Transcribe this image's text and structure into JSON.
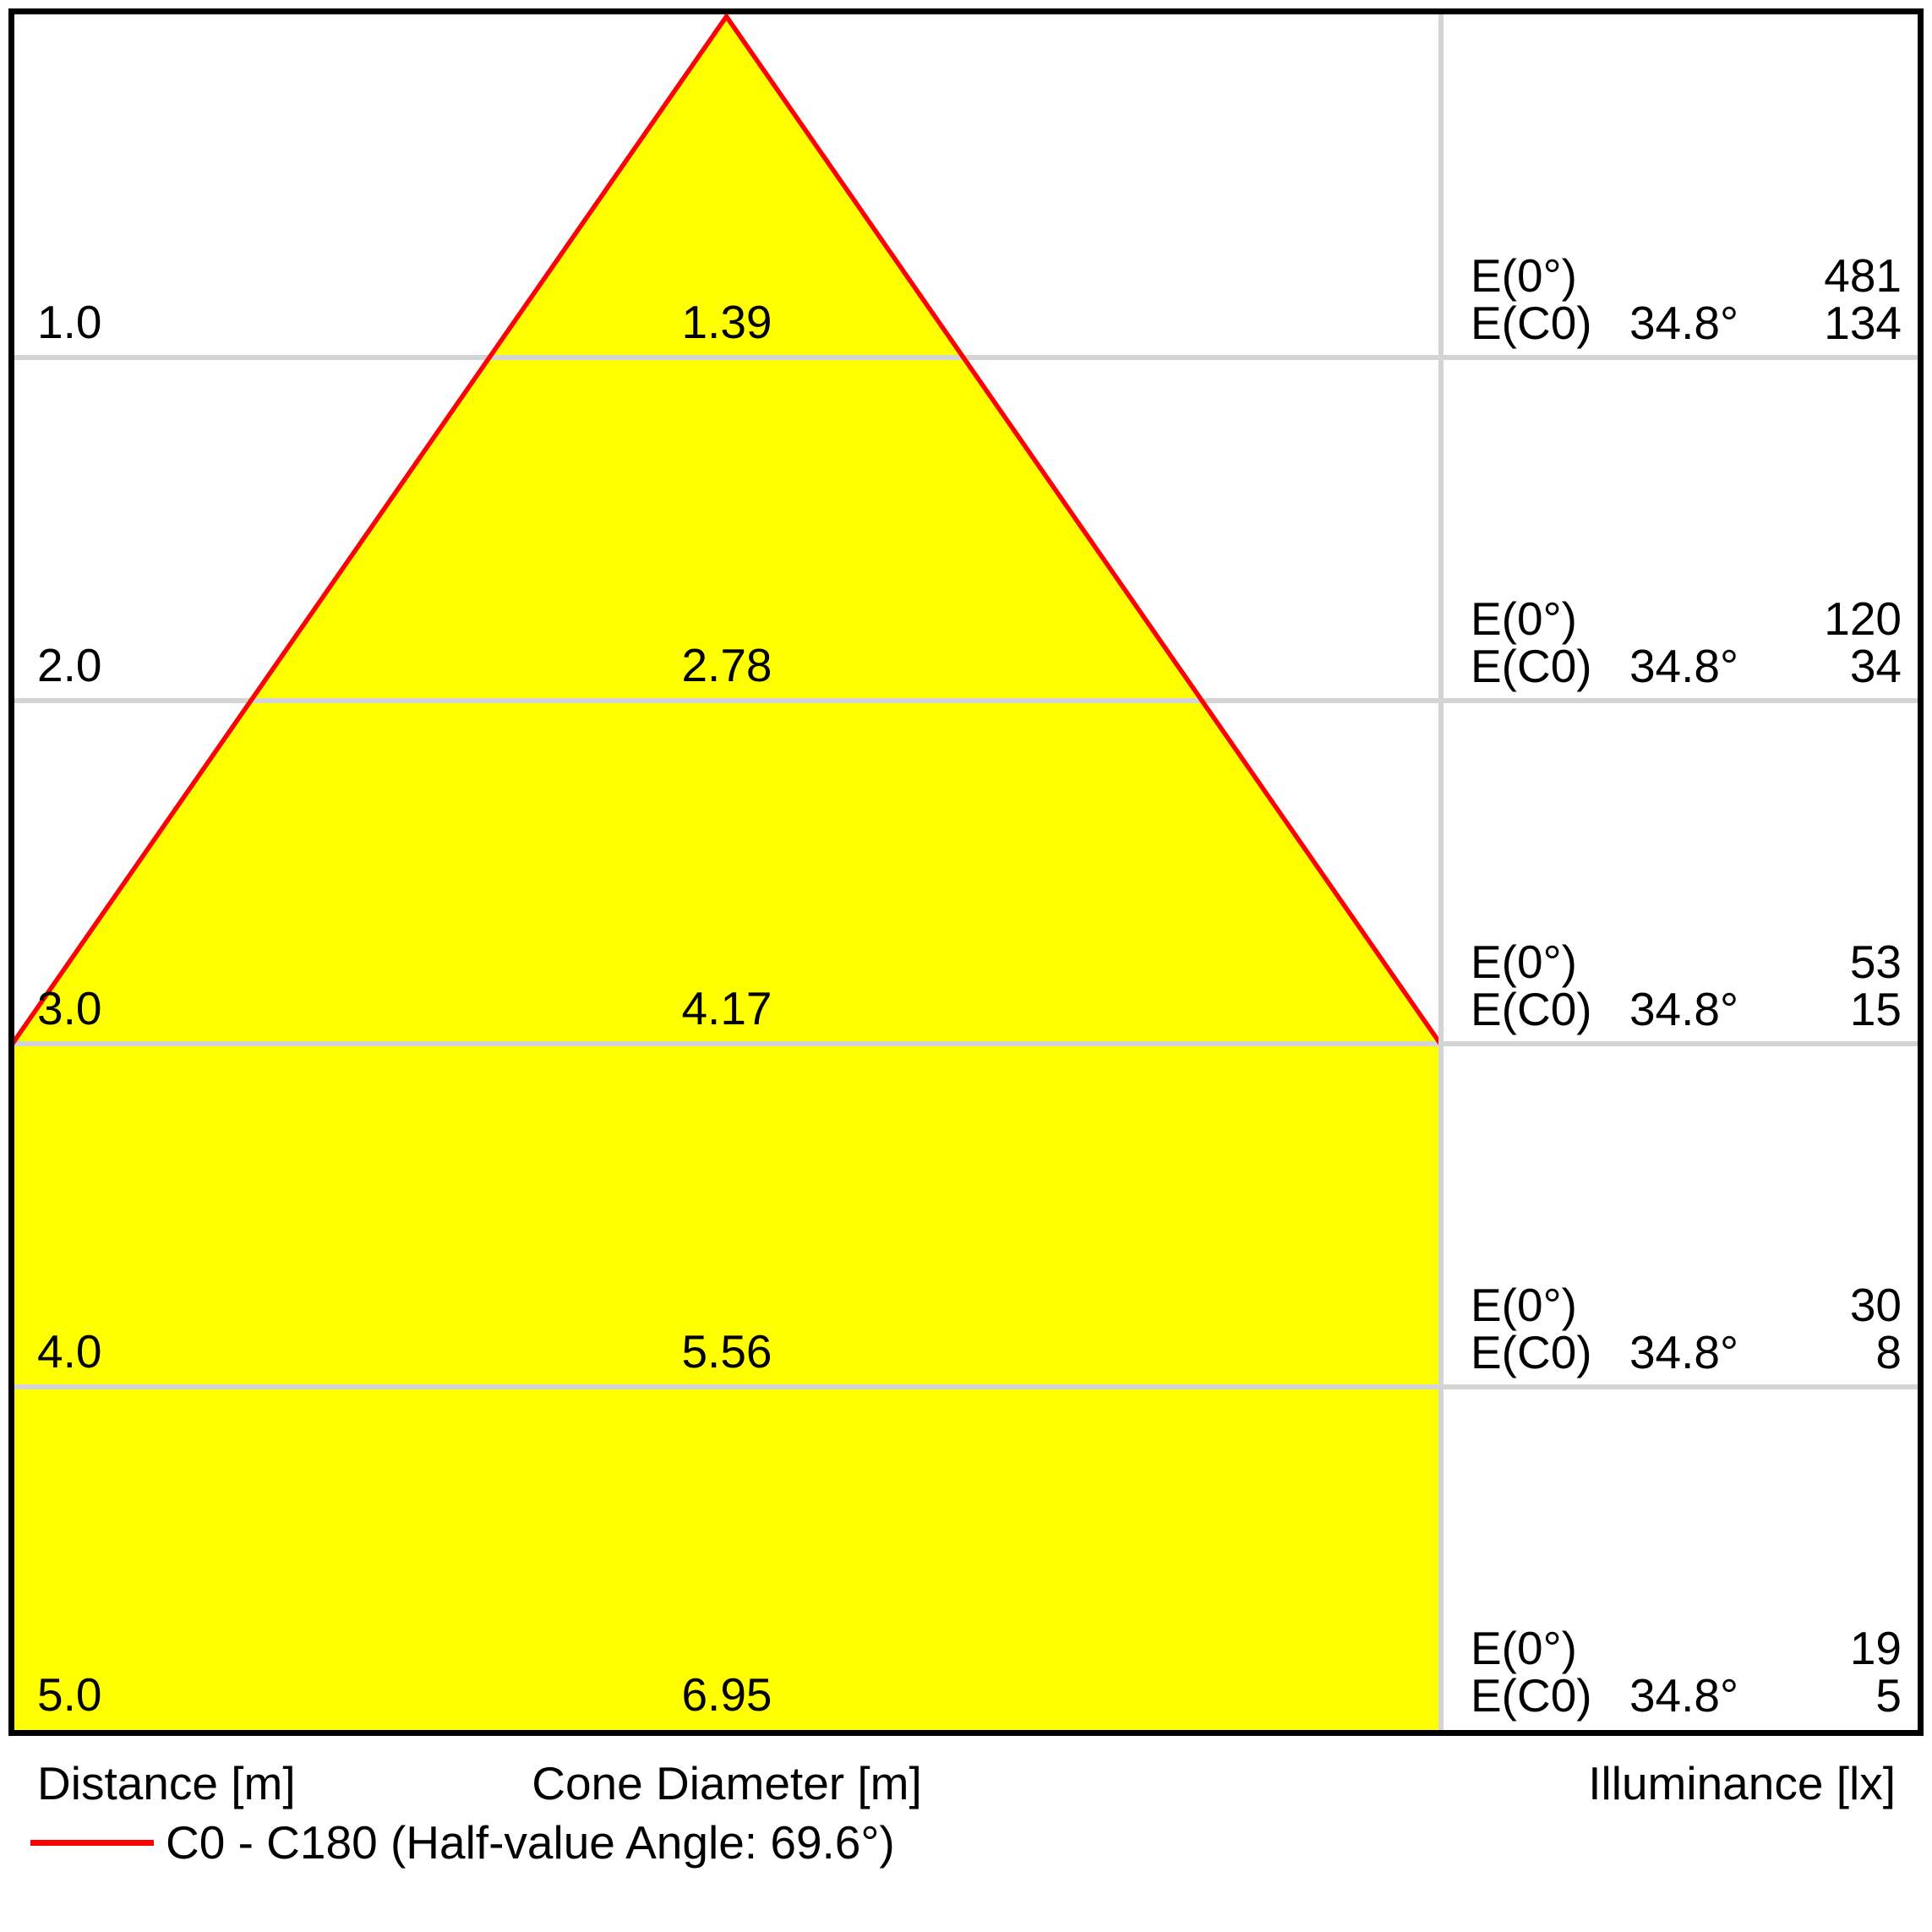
{
  "chart_data": {
    "type": "area",
    "subtype": "light-cone-diagram",
    "half_value_angle_deg": 69.6,
    "half_angle_deg": 34.8,
    "distances_m": [
      1.0,
      2.0,
      3.0,
      4.0,
      5.0
    ],
    "cone_diameters_m": [
      1.39,
      2.78,
      4.17,
      5.56,
      6.95
    ],
    "illuminance_e0_lx": [
      481,
      120,
      53,
      30,
      19
    ],
    "illuminance_ec0_lx": [
      134,
      34,
      15,
      8,
      5
    ],
    "grid": "horizontal lines at each metre",
    "legend_position": "bottom-left",
    "rows": [
      {
        "distance": "1.0",
        "diameter": "1.39",
        "e0": "481",
        "ec0": "134",
        "angle": "34.8°"
      },
      {
        "distance": "2.0",
        "diameter": "2.78",
        "e0": "120",
        "ec0": "34",
        "angle": "34.8°"
      },
      {
        "distance": "3.0",
        "diameter": "4.17",
        "e0": "53",
        "ec0": "15",
        "angle": "34.8°"
      },
      {
        "distance": "4.0",
        "diameter": "5.56",
        "e0": "30",
        "ec0": "8",
        "angle": "34.8°"
      },
      {
        "distance": "5.0",
        "diameter": "6.95",
        "e0": "19",
        "ec0": "5",
        "angle": "34.8°"
      }
    ],
    "labels": {
      "e0_label": "E(0°)",
      "ec0_label": "E(C0)"
    }
  },
  "footer": {
    "distance_axis": "Distance [m]",
    "cone_axis": "Cone Diameter [m]",
    "illuminance_axis": "Illuminance [lx]"
  },
  "legend": {
    "label": "C0 - C180 (Half-value Angle: 69.6°)"
  },
  "colors": {
    "cone_fill": "#ffff00",
    "cone_outline": "#ff0000",
    "gridline": "#d4d4d4",
    "border": "#000000",
    "text": "#000000"
  }
}
